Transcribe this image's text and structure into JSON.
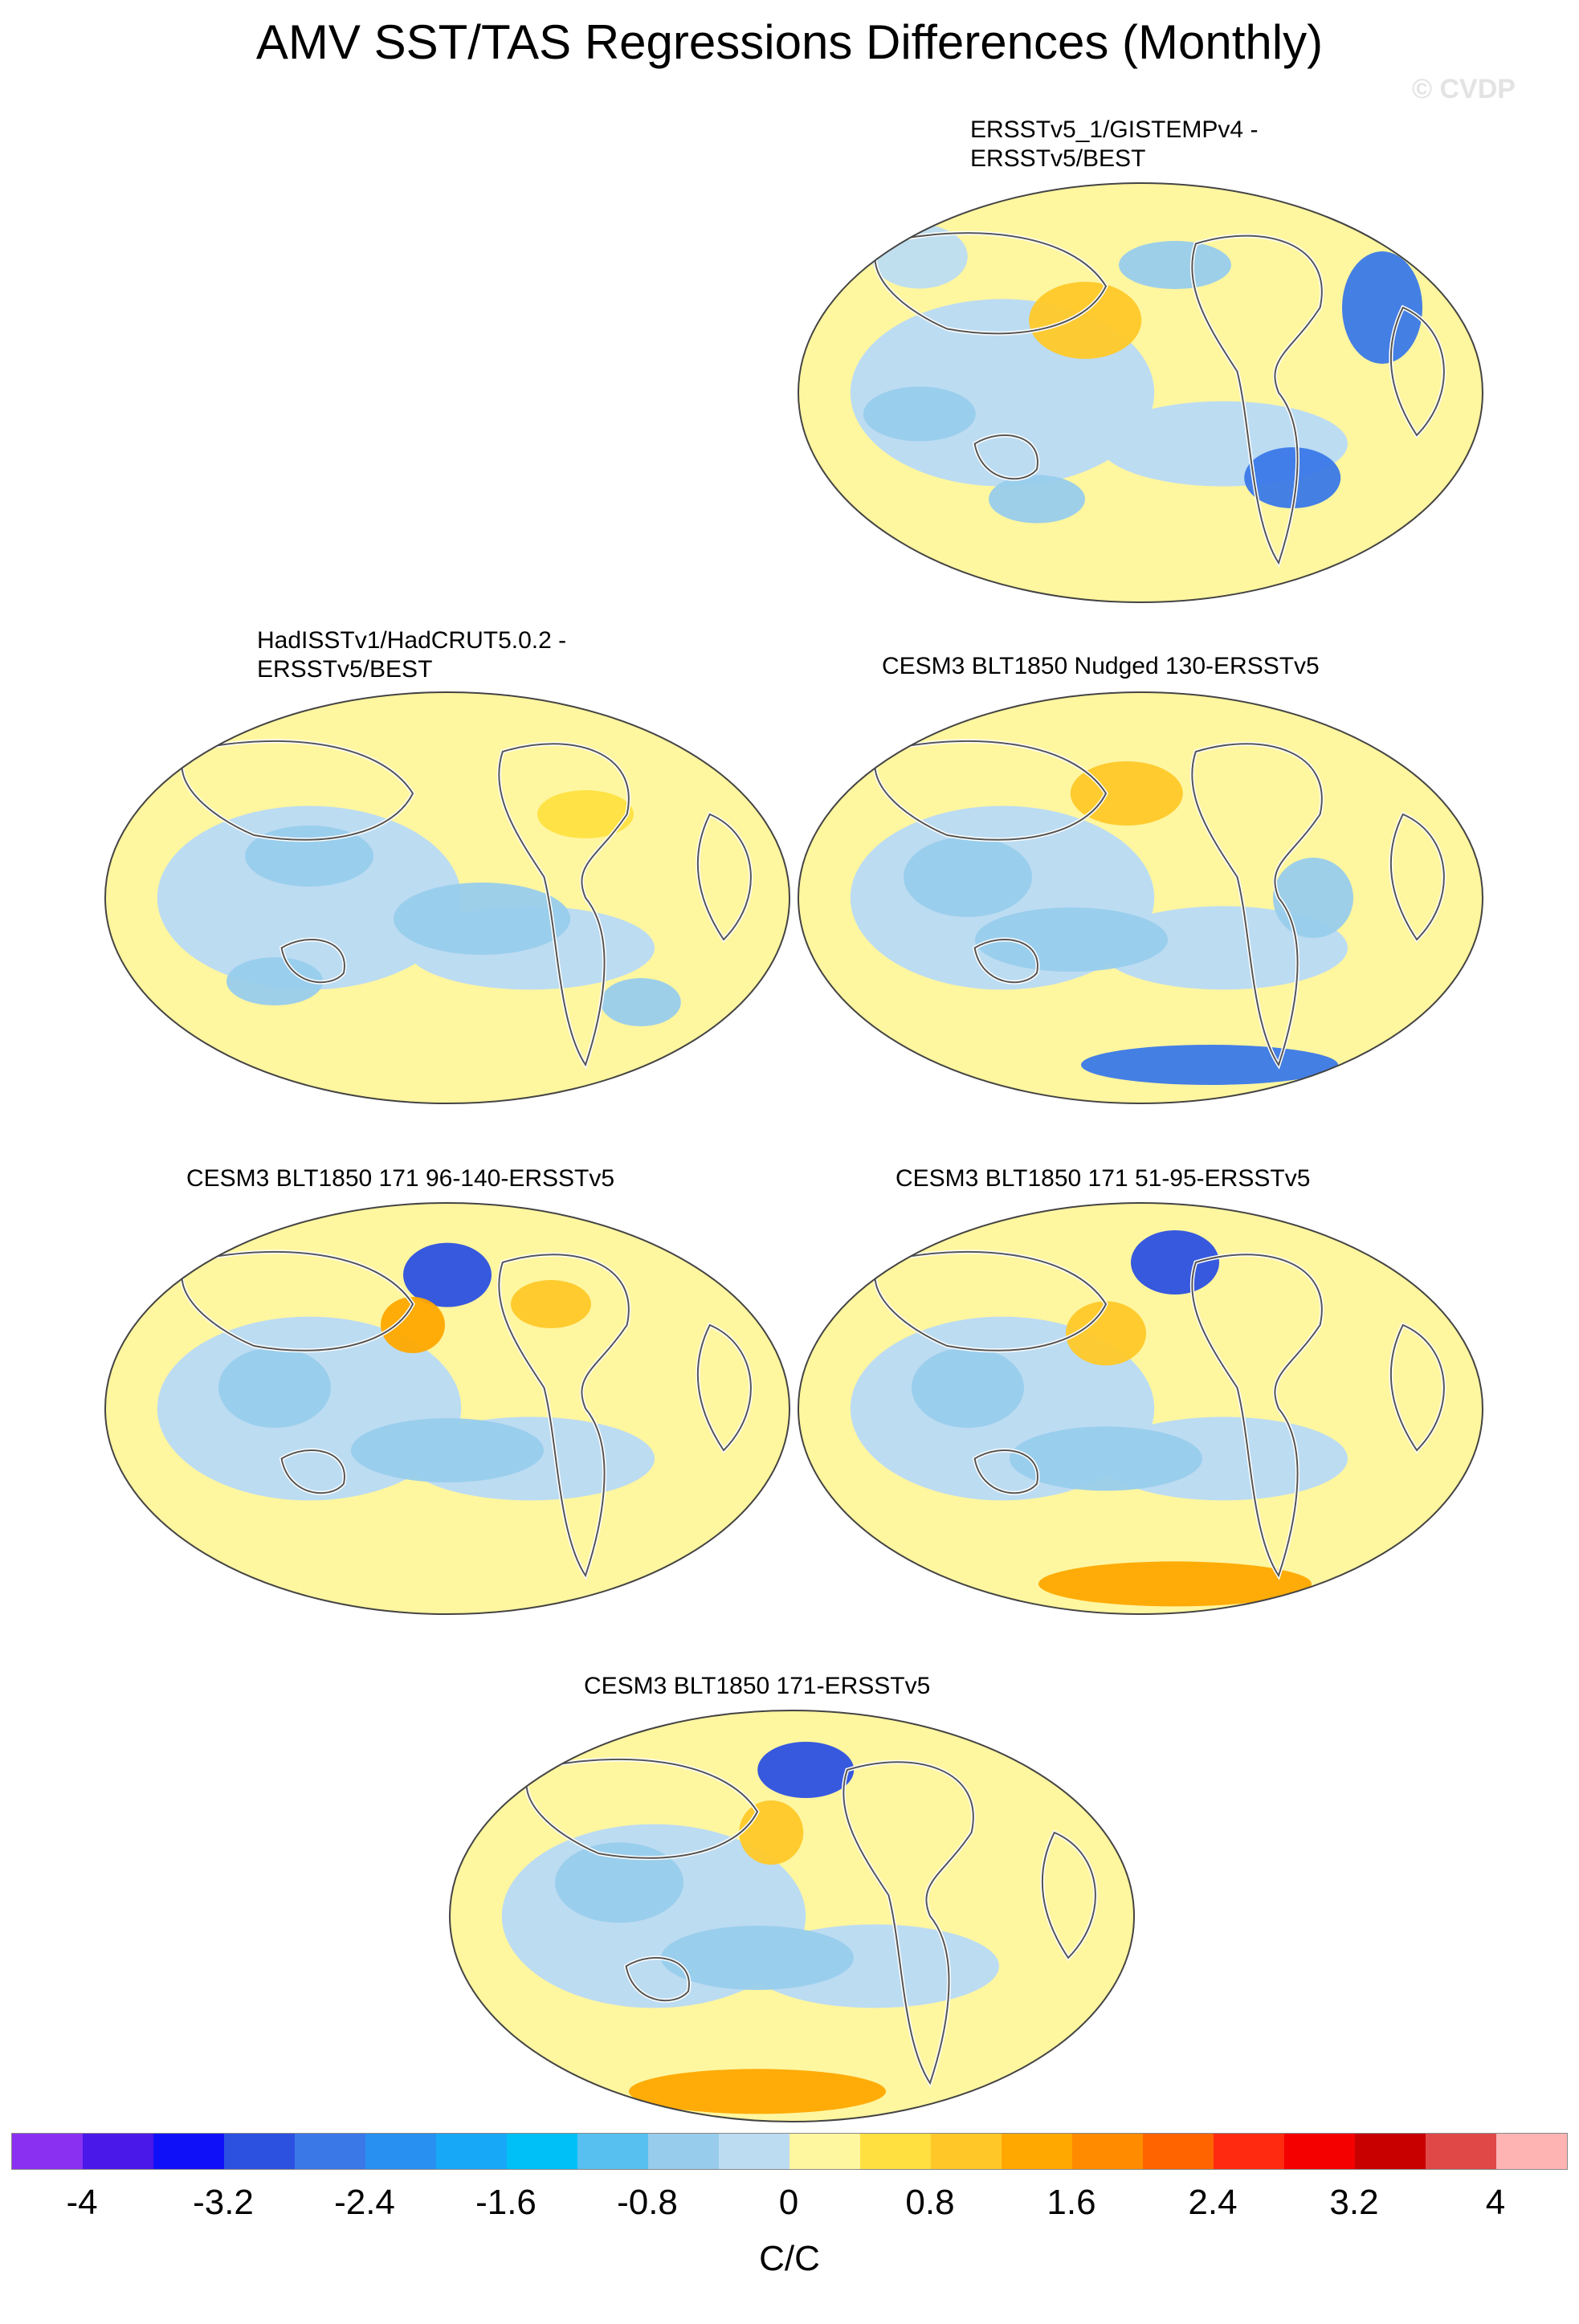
{
  "title": "AMV SST/TAS Regressions Differences (Monthly)",
  "watermark": "© CVDP",
  "panels": [
    {
      "line1": "ERSSTv5_1/GISTEMPv4 -",
      "line2": "ERSSTv5/BEST"
    },
    {
      "line1": "HadISSTv1/HadCRUT5.0.2 -",
      "line2": "ERSSTv5/BEST"
    },
    {
      "line1": "CESM3 BLT1850 Nudged 130-ERSSTv5",
      "line2": ""
    },
    {
      "line1": "CESM3 BLT1850 171 96-140-ERSSTv5",
      "line2": ""
    },
    {
      "line1": "CESM3 BLT1850 171 51-95-ERSSTv5",
      "line2": ""
    },
    {
      "line1": "CESM3 BLT1850 171-ERSSTv5",
      "line2": ""
    }
  ],
  "colorbar": {
    "colors": [
      "#8a30f0",
      "#4a18e8",
      "#1010f8",
      "#2c50e0",
      "#3a78e8",
      "#2890f0",
      "#18a8f8",
      "#00c0f8",
      "#58c0f0",
      "#98ccec",
      "#bcdcf2",
      "#fff6a0",
      "#ffe040",
      "#ffc828",
      "#ffa800",
      "#ff8c00",
      "#ff6400",
      "#ff2a10",
      "#f40000",
      "#c80000",
      "#e04848",
      "#ffb4b4"
    ],
    "ticks": [
      "-4",
      "-3.2",
      "-2.4",
      "-1.6",
      "-0.8",
      "0",
      "0.8",
      "1.6",
      "2.4",
      "3.2",
      "4"
    ],
    "units": "C/C"
  }
}
